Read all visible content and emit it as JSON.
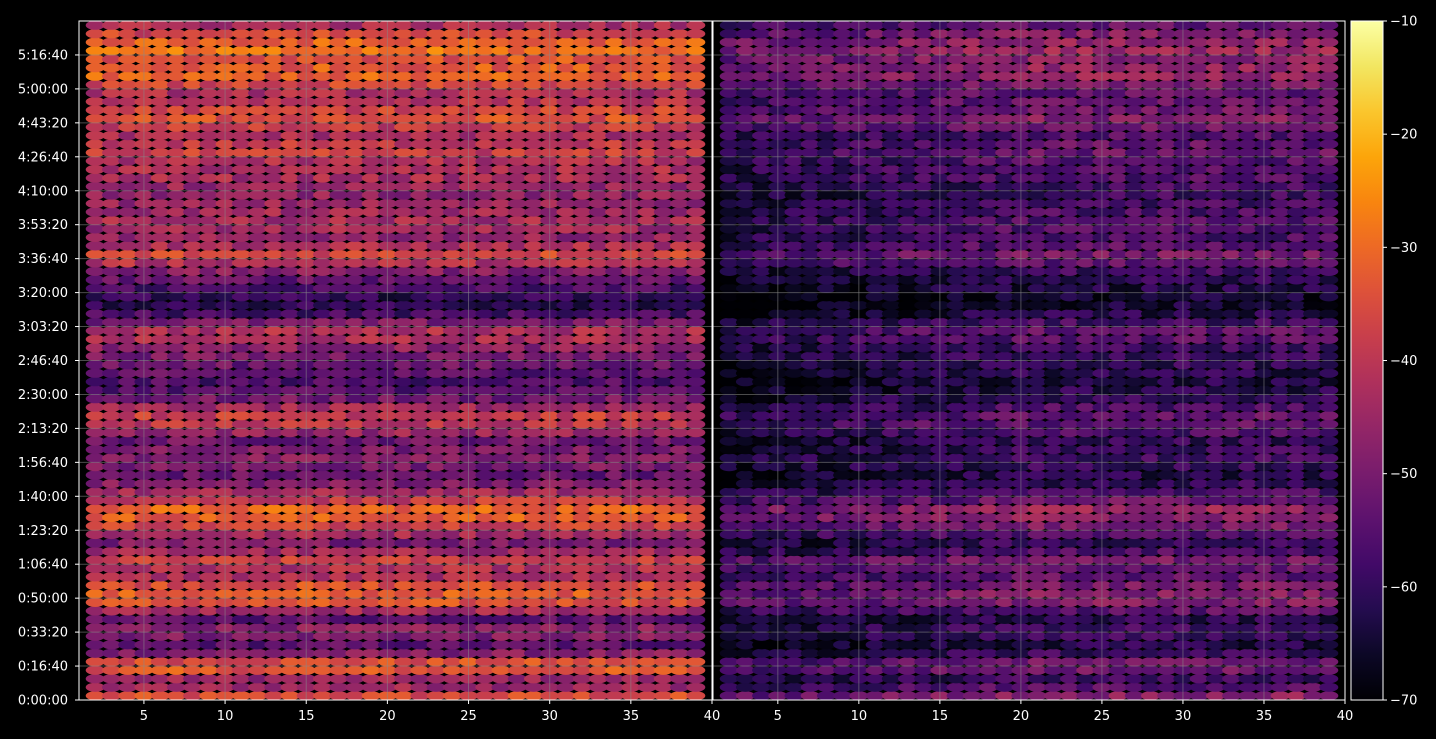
{
  "chart_data": [
    {
      "type": "heatmap",
      "panel": "left",
      "marker": "ellipse",
      "x_range": [
        1,
        40
      ],
      "x_ticks": [
        "5",
        "10",
        "15",
        "20",
        "25",
        "30",
        "35",
        "40"
      ],
      "x_tick_values": [
        5,
        10,
        15,
        20,
        25,
        30,
        35,
        40
      ],
      "y_range": [
        0,
        20000
      ],
      "y_ticks": [
        "0:00:00",
        "0:16:40",
        "0:33:20",
        "0:50:00",
        "1:06:40",
        "1:23:20",
        "1:40:00",
        "1:56:40",
        "2:13:20",
        "2:30:00",
        "2:46:40",
        "3:03:20",
        "3:20:00",
        "3:36:40",
        "3:53:20",
        "4:10:00",
        "4:26:40",
        "4:43:20",
        "5:00:00",
        "5:16:40"
      ],
      "y_tick_values": [
        0,
        1000,
        2000,
        3000,
        4000,
        5000,
        6000,
        7000,
        8000,
        9000,
        10000,
        11000,
        12000,
        13000,
        14000,
        15000,
        16000,
        17000,
        18000,
        19000
      ],
      "grid": true,
      "row_levels_dB": [
        {
          "t": 0,
          "v": -42
        },
        {
          "t": 200,
          "v": -32
        },
        {
          "t": 480,
          "v": -52
        },
        {
          "t": 1000,
          "v": -28
        },
        {
          "t": 1400,
          "v": -50
        },
        {
          "t": 1700,
          "v": -56
        },
        {
          "t": 2000,
          "v": -44
        },
        {
          "t": 2350,
          "v": -55
        },
        {
          "t": 2800,
          "v": -36
        },
        {
          "t": 3000,
          "v": -32
        },
        {
          "t": 3350,
          "v": -34
        },
        {
          "t": 3700,
          "v": -45
        },
        {
          "t": 4150,
          "v": -38
        },
        {
          "t": 4350,
          "v": -44
        },
        {
          "t": 4650,
          "v": -50
        },
        {
          "t": 5200,
          "v": -34
        },
        {
          "t": 5600,
          "v": -30
        },
        {
          "t": 5750,
          "v": -36
        },
        {
          "t": 6150,
          "v": -45
        },
        {
          "t": 6600,
          "v": -53
        },
        {
          "t": 7050,
          "v": -48
        },
        {
          "t": 7650,
          "v": -52
        },
        {
          "t": 8000,
          "v": -42
        },
        {
          "t": 8300,
          "v": -36
        },
        {
          "t": 8900,
          "v": -52
        },
        {
          "t": 9300,
          "v": -57
        },
        {
          "t": 9900,
          "v": -52
        },
        {
          "t": 10400,
          "v": -47
        },
        {
          "t": 10800,
          "v": -40
        },
        {
          "t": 11350,
          "v": -57
        },
        {
          "t": 11800,
          "v": -62
        },
        {
          "t": 12650,
          "v": -48
        },
        {
          "t": 13100,
          "v": -35
        },
        {
          "t": 13550,
          "v": -47
        },
        {
          "t": 14050,
          "v": -43
        },
        {
          "t": 14450,
          "v": -45
        },
        {
          "t": 15000,
          "v": -47
        },
        {
          "t": 15500,
          "v": -42
        },
        {
          "t": 15800,
          "v": -44
        },
        {
          "t": 16200,
          "v": -37
        },
        {
          "t": 16700,
          "v": -44
        },
        {
          "t": 17050,
          "v": -34
        },
        {
          "t": 17500,
          "v": -38
        },
        {
          "t": 17800,
          "v": -44
        },
        {
          "t": 18450,
          "v": -30
        },
        {
          "t": 18800,
          "v": -35
        },
        {
          "t": 19200,
          "v": -28
        },
        {
          "t": 19700,
          "v": -38
        },
        {
          "t": 20000,
          "v": -46
        }
      ]
    },
    {
      "type": "heatmap",
      "panel": "right",
      "marker": "ellipse",
      "x_range": [
        1,
        40
      ],
      "x_ticks": [
        "5",
        "10",
        "15",
        "20",
        "25",
        "30",
        "35",
        "40"
      ],
      "x_tick_values": [
        5,
        10,
        15,
        20,
        25,
        30,
        35,
        40
      ],
      "y_range": [
        0,
        20000
      ],
      "grid": true,
      "row_levels_dB": [
        {
          "t": 0,
          "v": -52
        },
        {
          "t": 200,
          "v": -45
        },
        {
          "t": 500,
          "v": -62
        },
        {
          "t": 1000,
          "v": -48
        },
        {
          "t": 1400,
          "v": -60
        },
        {
          "t": 1700,
          "v": -63
        },
        {
          "t": 2000,
          "v": -56
        },
        {
          "t": 2350,
          "v": -62
        },
        {
          "t": 2800,
          "v": -50
        },
        {
          "t": 3000,
          "v": -48
        },
        {
          "t": 3350,
          "v": -50
        },
        {
          "t": 3700,
          "v": -55
        },
        {
          "t": 4150,
          "v": -50
        },
        {
          "t": 4350,
          "v": -56
        },
        {
          "t": 4650,
          "v": -60
        },
        {
          "t": 5200,
          "v": -48
        },
        {
          "t": 5600,
          "v": -45
        },
        {
          "t": 5750,
          "v": -50
        },
        {
          "t": 6200,
          "v": -58
        },
        {
          "t": 6600,
          "v": -62
        },
        {
          "t": 7050,
          "v": -58
        },
        {
          "t": 7650,
          "v": -60
        },
        {
          "t": 8000,
          "v": -55
        },
        {
          "t": 8300,
          "v": -52
        },
        {
          "t": 8900,
          "v": -60
        },
        {
          "t": 9300,
          "v": -63
        },
        {
          "t": 9900,
          "v": -60
        },
        {
          "t": 10400,
          "v": -58
        },
        {
          "t": 10800,
          "v": -52
        },
        {
          "t": 11350,
          "v": -62
        },
        {
          "t": 11800,
          "v": -66
        },
        {
          "t": 12650,
          "v": -58
        },
        {
          "t": 13100,
          "v": -50
        },
        {
          "t": 13550,
          "v": -57
        },
        {
          "t": 14050,
          "v": -55
        },
        {
          "t": 14450,
          "v": -57
        },
        {
          "t": 15000,
          "v": -59
        },
        {
          "t": 15500,
          "v": -55
        },
        {
          "t": 15800,
          "v": -56
        },
        {
          "t": 16200,
          "v": -52
        },
        {
          "t": 16700,
          "v": -56
        },
        {
          "t": 17050,
          "v": -48
        },
        {
          "t": 17500,
          "v": -52
        },
        {
          "t": 17800,
          "v": -55
        },
        {
          "t": 18450,
          "v": -45
        },
        {
          "t": 18800,
          "v": -48
        },
        {
          "t": 19200,
          "v": -44
        },
        {
          "t": 19700,
          "v": -50
        },
        {
          "t": 20000,
          "v": -55
        }
      ]
    }
  ],
  "colorbar": {
    "colormap": "inferno",
    "range": [
      -70,
      -10
    ],
    "ticks": [
      "−10",
      "−20",
      "−30",
      "−40",
      "−50",
      "−60",
      "−70"
    ],
    "tick_values": [
      -10,
      -20,
      -30,
      -40,
      -50,
      -60,
      -70
    ]
  },
  "colors": {
    "background": "#000000",
    "axes_edge": "#ffffff",
    "grid": "#888888"
  }
}
